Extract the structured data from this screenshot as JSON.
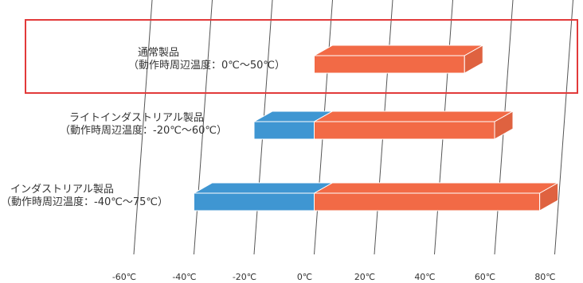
{
  "chart_data": {
    "type": "bar",
    "orientation": "horizontal",
    "style": "3d-range",
    "x_ticks": [
      "-60℃",
      "-40℃",
      "-20℃",
      "0℃",
      "20℃",
      "40℃",
      "60℃",
      "80℃"
    ],
    "x_values": [
      -60,
      -40,
      -20,
      0,
      20,
      40,
      60,
      80
    ],
    "xlim": [
      -60,
      80
    ],
    "grid": true,
    "colors": {
      "below_zero": "#3f96d2",
      "above_zero": "#f26a46",
      "highlight_box": "#e23a3a"
    },
    "rows": [
      {
        "name": "通常製品",
        "range_text": "（動作時周辺温度：0℃〜50℃）",
        "min": 0,
        "max": 50,
        "highlighted": true
      },
      {
        "name": "ライトインダストリアル製品",
        "range_text": "（動作時周辺温度：-20℃〜60℃）",
        "min": -20,
        "max": 60,
        "highlighted": false
      },
      {
        "name": "インダストリアル製品",
        "range_text": "（動作時周辺温度：-40℃〜75℃）",
        "min": -40,
        "max": 75,
        "highlighted": false
      }
    ]
  }
}
